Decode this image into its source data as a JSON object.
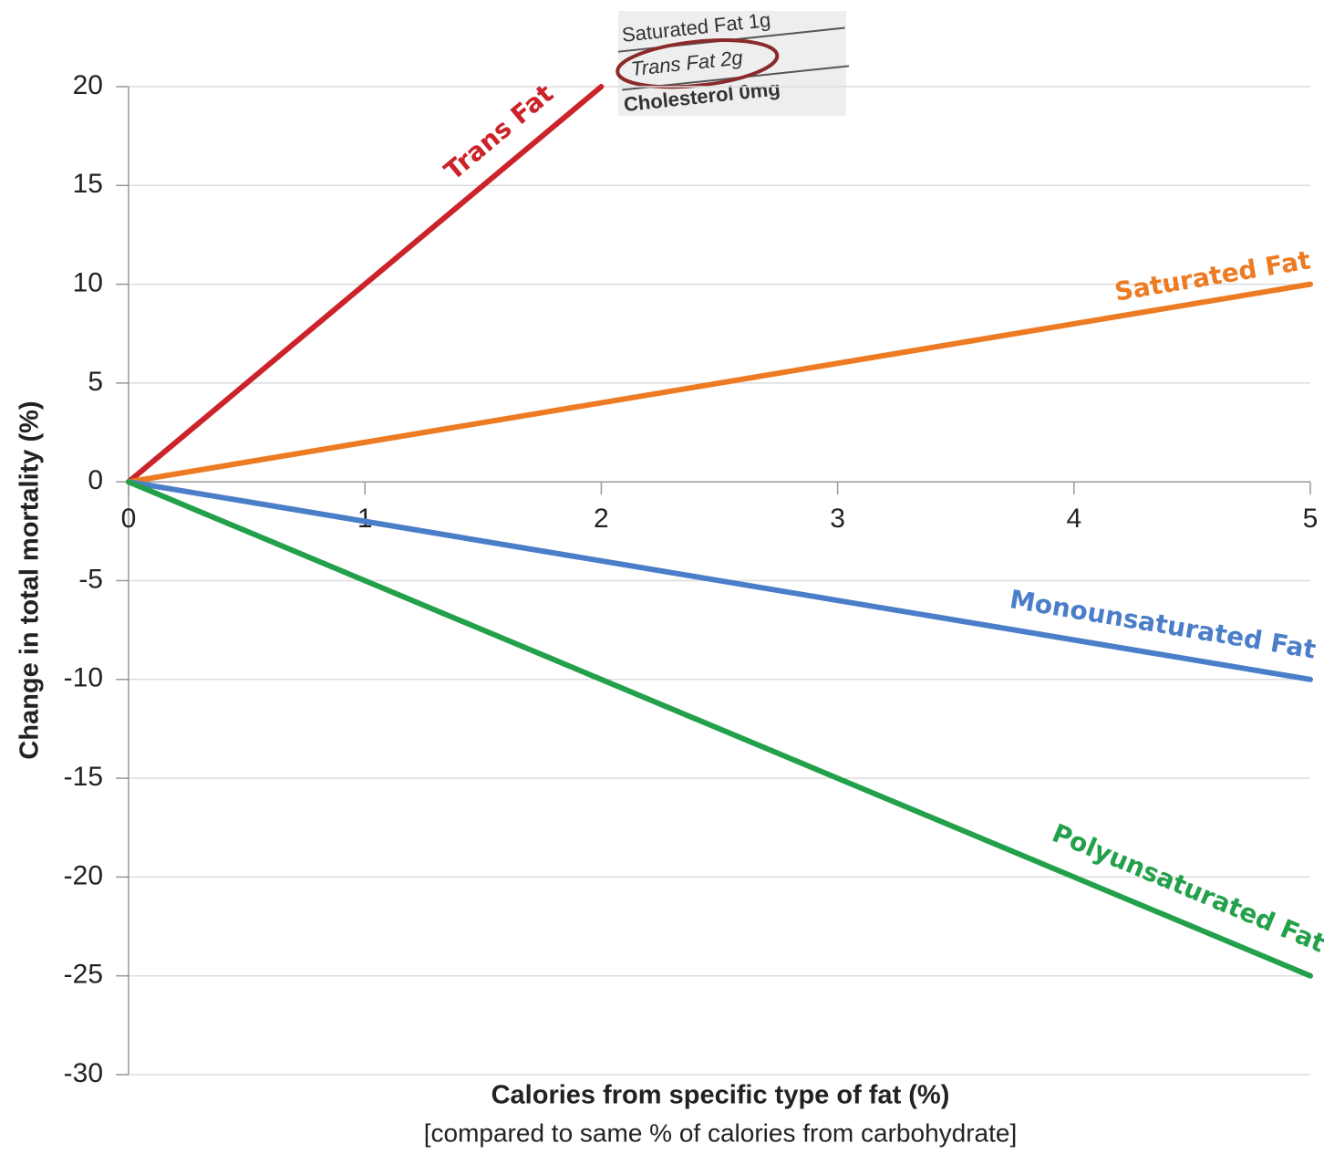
{
  "chart_data": {
    "type": "line",
    "y_label": "Change in total mortality  (%)",
    "x_label": "Calories from specific type of fat (%)",
    "x_sublabel": "[compared to same % of calories from carbohydrate]",
    "inset_label": [
      "Saturated Fat 1g",
      "Trans Fat 2g",
      "Cholesterol 0mg"
    ],
    "x": [
      0,
      1,
      2,
      3,
      4,
      5
    ],
    "xlim": [
      0,
      5
    ],
    "xticks": [
      0,
      1,
      2,
      3,
      4,
      5
    ],
    "ylim": [
      -30,
      20
    ],
    "yticks": [
      -30,
      -25,
      -20,
      -15,
      -10,
      -5,
      0,
      5,
      10,
      15,
      20
    ],
    "grid": true,
    "series": [
      {
        "name": "Trans Fat",
        "color": "#cc2229",
        "values": [
          0,
          10,
          20,
          null,
          null,
          null
        ]
      },
      {
        "name": "Saturated Fat",
        "color": "#ec7b23",
        "values": [
          0,
          2,
          4,
          6,
          8,
          10
        ]
      },
      {
        "name": "Monounsaturated Fat",
        "color": "#4a7ec8",
        "values": [
          0,
          -2,
          -4,
          -6,
          -8,
          -10
        ]
      },
      {
        "name": "Polyunsaturated Fat",
        "color": "#23a04a",
        "values": [
          0,
          -5,
          -10,
          -15,
          -20,
          -25
        ]
      }
    ]
  }
}
